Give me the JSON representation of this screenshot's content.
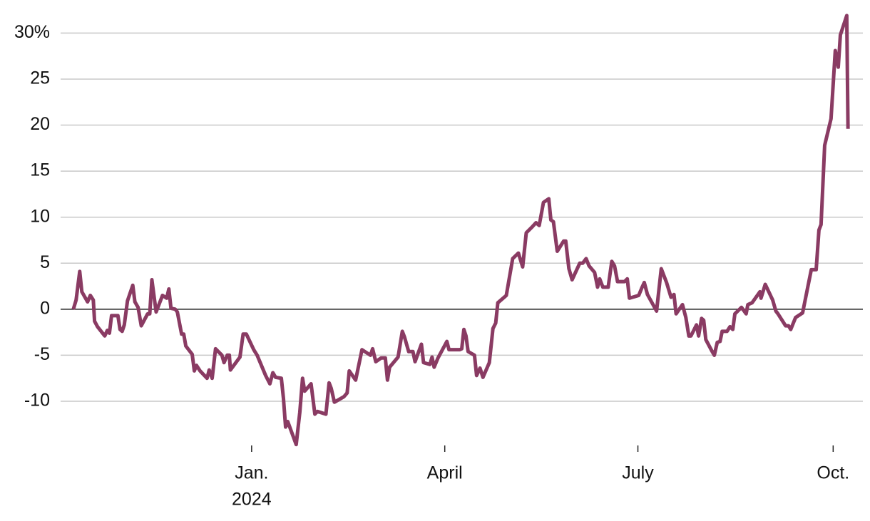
{
  "chart_data": {
    "type": "line",
    "x": [
      0,
      1.3,
      3,
      4,
      6.7,
      8,
      9.4,
      10,
      11.4,
      14.8,
      16,
      17,
      18,
      21,
      22,
      23,
      24,
      25.5,
      28,
      29,
      30.5,
      32,
      35,
      36,
      37,
      39,
      42,
      44,
      45,
      46,
      48,
      49,
      51,
      52,
      53,
      56,
      57,
      58,
      59.7,
      63,
      64,
      65.4,
      67,
      70,
      71,
      72.5,
      73.5,
      74,
      78.5,
      80,
      81.5,
      85,
      86.6,
      90.6,
      92.6,
      94,
      95.3,
      98,
      99,
      100,
      101,
      105,
      106.7,
      108,
      109,
      112,
      113.8,
      115,
      119,
      120.5,
      121.5,
      123,
      127.5,
      129,
      130,
      133,
      136,
      140,
      141,
      142.5,
      145,
      147,
      148,
      149,
      153,
      155,
      156,
      158,
      160,
      161,
      164,
      165,
      168,
      169,
      170,
      171.8,
      176,
      177,
      182,
      183,
      184,
      185,
      186,
      189,
      190,
      191.6,
      193,
      196,
      197.7,
      199,
      200,
      204,
      207,
      209.7,
      211.7,
      213.4,
      216,
      218,
      219.5,
      221.5,
      224,
      225,
      226.2,
      228,
      231,
      232,
      233.5,
      235,
      238.6,
      240,
      241.6,
      243,
      245.6,
      247,
      248,
      249.5,
      252,
      253.7,
      255,
      256.4,
      259.7,
      261,
      262,
      266.4,
      268,
      269,
      270.5,
      274.8,
      277,
      279.5,
      281.6,
      283,
      284,
      287,
      288.6,
      290,
      291,
      293.6,
      294.6,
      296,
      297,
      298,
      301,
      302,
      303.4,
      304.7,
      305.7,
      308,
      309.4,
      310.7,
      311.7,
      314.8,
      317,
      317.8,
      319.8,
      323.5,
      324,
      326,
      329.5,
      331,
      332,
      335.6,
      337,
      338,
      340.3,
      343.6,
      346.3,
      347.7,
      350,
      351.3,
      352.3,
      354,
      357,
      359,
      360.4,
      361.4,
      364.4,
      365
    ],
    "series": [
      {
        "color": "#8a3b63",
        "values": [
          0,
          1,
          4.1,
          1.9,
          0.8,
          1.5,
          1,
          -1.3,
          -1.9,
          -2.9,
          -2.3,
          -2.6,
          -0.7,
          -0.7,
          -2.2,
          -2.4,
          -1.7,
          0.9,
          2.6,
          0.8,
          0.2,
          -1.8,
          -0.5,
          -0.5,
          3.2,
          -0.3,
          1.5,
          1.2,
          2.2,
          0.1,
          0,
          -0.3,
          -2.7,
          -2.7,
          -4,
          -4.9,
          -6.7,
          -6.1,
          -6.7,
          -7.5,
          -6.6,
          -7.5,
          -4.3,
          -5,
          -5.8,
          -5,
          -5,
          -6.6,
          -5.2,
          -2.7,
          -2.7,
          -4.4,
          -5,
          -7.2,
          -8.1,
          -6.9,
          -7.4,
          -7.5,
          -9.7,
          -12.8,
          -12.2,
          -14.7,
          -11.2,
          -7.5,
          -8.9,
          -8.1,
          -11.4,
          -11.1,
          -11.4,
          -8,
          -8.6,
          -10.1,
          -9.5,
          -9.1,
          -6.7,
          -7.7,
          -4.4,
          -5,
          -4.3,
          -5.7,
          -5.3,
          -5.3,
          -7.7,
          -6.3,
          -5.2,
          -2.4,
          -3,
          -4.6,
          -4.6,
          -5.7,
          -3.8,
          -5.8,
          -6,
          -5.2,
          -6.3,
          -5.3,
          -3.5,
          -4.4,
          -4.4,
          -4.3,
          -2.2,
          -2.9,
          -4.6,
          -5,
          -7.2,
          -6.4,
          -7.4,
          -5.8,
          -2.1,
          -1.5,
          0.7,
          1.5,
          5.5,
          6.1,
          4.6,
          8.3,
          8.9,
          9.4,
          9.1,
          11.6,
          12,
          9.7,
          9.5,
          6.3,
          7.4,
          7.4,
          4.4,
          3.2,
          5,
          5,
          5.5,
          4.7,
          4,
          2.4,
          3.3,
          2.4,
          2.4,
          5.2,
          4.7,
          3,
          3,
          3.3,
          1.2,
          1.5,
          2.4,
          2.9,
          1.6,
          -0.2,
          4.4,
          2.9,
          1.3,
          1.6,
          -0.5,
          0.5,
          -0.9,
          -2.9,
          -2.9,
          -1.7,
          -2.9,
          -1,
          -1.2,
          -3.3,
          -4.6,
          -5,
          -3.6,
          -3.5,
          -2.4,
          -2.4,
          -1.9,
          -2.2,
          -0.5,
          0.2,
          -0.5,
          0.5,
          0.7,
          1.9,
          1.2,
          2.7,
          1,
          -0.2,
          -0.5,
          -1.8,
          -1.8,
          -2.2,
          -0.9,
          -0.4,
          2.7,
          4.3,
          4.3,
          8.6,
          9.2,
          17.8,
          20.7,
          28.1,
          26.3,
          29.8,
          31.9,
          19.6
        ]
      }
    ],
    "xlim": [
      -6,
      372
    ],
    "xticks": [
      {
        "value": 84,
        "label": "Jan."
      },
      {
        "value": 175,
        "label": "April"
      },
      {
        "value": 266,
        "label": "July"
      },
      {
        "value": 358,
        "label": "Oct."
      }
    ],
    "x_year_label": "2024",
    "ylim": [
      -14.8,
      32.2
    ],
    "yticks": [
      -10,
      -5,
      0,
      5,
      10,
      15,
      20,
      25,
      {
        "value": 30,
        "label": "30%"
      }
    ],
    "grid": true
  }
}
